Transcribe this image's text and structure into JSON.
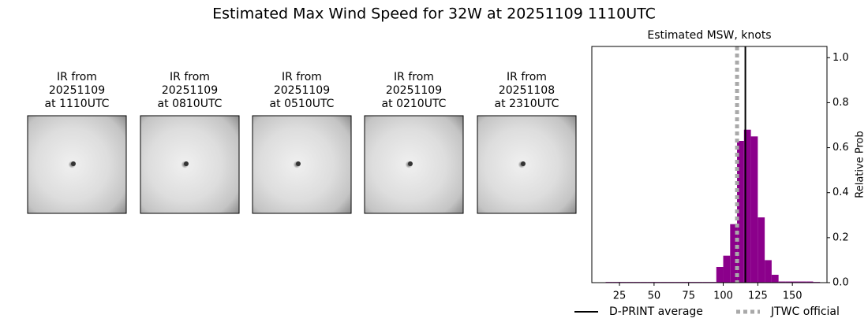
{
  "title": "Estimated Max Wind Speed for 32W at 20251109 1110UTC",
  "panels": [
    {
      "caption": [
        "IR from",
        "20251109",
        "at 1110UTC"
      ]
    },
    {
      "caption": [
        "IR from",
        "20251109",
        "at 0810UTC"
      ]
    },
    {
      "caption": [
        "IR from",
        "20251109",
        "at 0510UTC"
      ]
    },
    {
      "caption": [
        "IR from",
        "20251109",
        "at 0210UTC"
      ]
    },
    {
      "caption": [
        "IR from",
        "20251108",
        "at 2310UTC"
      ]
    }
  ],
  "chart_data": {
    "type": "histogram",
    "title": "Estimated MSW, knots",
    "ylabel": "Relative Prob",
    "color": "#8b008b",
    "bins": [
      15,
      20,
      25,
      30,
      35,
      40,
      45,
      50,
      55,
      60,
      65,
      70,
      75,
      80,
      85,
      90,
      95,
      100,
      105,
      110,
      115,
      120,
      125,
      130,
      135,
      140,
      145,
      150,
      155,
      160,
      165,
      170
    ],
    "values": [
      0.003,
      0.003,
      0.003,
      0.003,
      0.003,
      0.003,
      0.003,
      0.003,
      0.003,
      0.003,
      0.003,
      0.003,
      0.003,
      0.003,
      0.003,
      0.003,
      0.07,
      0.12,
      0.26,
      0.63,
      0.68,
      0.65,
      0.29,
      0.1,
      0.035,
      0.005,
      0.005,
      0.005,
      0.005,
      0.005,
      0.003
    ],
    "xlim": [
      5,
      175
    ],
    "ylim": [
      0,
      1.05
    ],
    "xticks": [
      25,
      50,
      75,
      100,
      125,
      150
    ],
    "yticks": [
      {
        "value": 0,
        "label": "0.0"
      },
      {
        "value": 0.2,
        "label": "0.2"
      },
      {
        "value": 0.4,
        "label": "0.4"
      },
      {
        "value": 0.6,
        "label": "0.6"
      },
      {
        "value": 0.8,
        "label": "0.8"
      },
      {
        "value": 1.0,
        "label": "1.0"
      }
    ],
    "lines": [
      {
        "name": "D-PRINT average",
        "value": 116,
        "color": "#000000",
        "style": "solid"
      },
      {
        "name": "JTWC official",
        "value": 110,
        "color": "#a9a9a9",
        "style": "dotted"
      }
    ]
  }
}
